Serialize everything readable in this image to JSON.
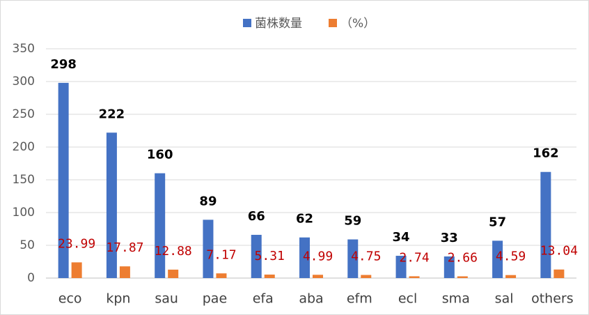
{
  "chart_data": {
    "type": "bar",
    "categories": [
      "eco",
      "kpn",
      "sau",
      "pae",
      "efa",
      "aba",
      "efm",
      "ecl",
      "sma",
      "sal",
      "others"
    ],
    "series": [
      {
        "name": "菌株数量",
        "color": "#4472c4",
        "values": [
          298,
          222,
          160,
          89,
          66,
          62,
          59,
          34,
          33,
          57,
          162
        ]
      },
      {
        "name": "（%）",
        "color": "#ed7d31",
        "values": [
          23.99,
          17.87,
          12.88,
          7.17,
          5.31,
          4.99,
          4.75,
          2.74,
          2.66,
          4.59,
          13.04
        ]
      }
    ],
    "ylim": [
      0,
      350
    ],
    "yticks": [
      0,
      50,
      100,
      150,
      200,
      250,
      300,
      350
    ],
    "grid": true,
    "legend": "top"
  }
}
